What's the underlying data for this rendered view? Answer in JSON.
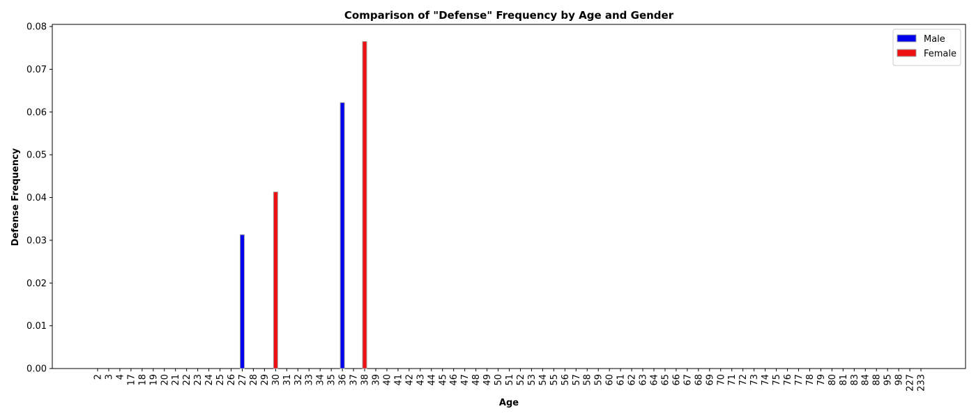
{
  "chart_data": {
    "type": "bar",
    "title": "Comparison of \"Defense\" Frequency by Age and Gender",
    "xlabel": "Age",
    "ylabel": "Defense Frequency",
    "ylim": [
      0,
      0.0805
    ],
    "yticks": [
      "0.00",
      "0.01",
      "0.02",
      "0.03",
      "0.04",
      "0.05",
      "0.06",
      "0.07",
      "0.08"
    ],
    "grid": false,
    "legend_position": "top-right",
    "categories": [
      "2",
      "3",
      "4",
      "17",
      "18",
      "19",
      "20",
      "21",
      "22",
      "23",
      "24",
      "25",
      "26",
      "27",
      "28",
      "29",
      "30",
      "31",
      "32",
      "33",
      "34",
      "35",
      "36",
      "37",
      "38",
      "39",
      "40",
      "41",
      "42",
      "43",
      "44",
      "45",
      "46",
      "47",
      "48",
      "49",
      "50",
      "51",
      "52",
      "53",
      "54",
      "55",
      "56",
      "57",
      "58",
      "59",
      "60",
      "61",
      "62",
      "63",
      "64",
      "65",
      "66",
      "67",
      "68",
      "69",
      "70",
      "71",
      "72",
      "73",
      "74",
      "75",
      "76",
      "77",
      "78",
      "79",
      "80",
      "81",
      "83",
      "84",
      "88",
      "95",
      "98",
      "227",
      "233"
    ],
    "series": [
      {
        "name": "Male",
        "color": "#0000ee",
        "values": {
          "27": 0.0313,
          "36": 0.0622
        }
      },
      {
        "name": "Female",
        "color": "#ee1111",
        "values": {
          "30": 0.0413,
          "38": 0.0765
        }
      }
    ]
  }
}
